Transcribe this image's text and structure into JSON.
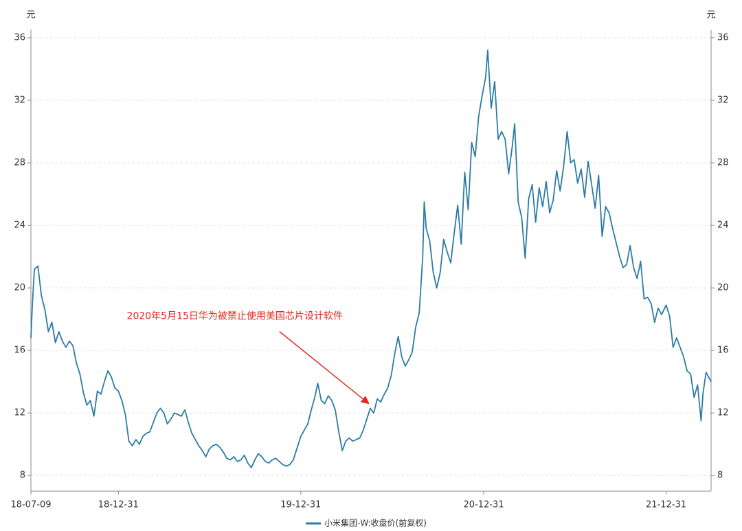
{
  "chart_data": {
    "type": "line",
    "ylabel": "元",
    "y2label": "元",
    "xlim": [
      "2018-07-09",
      "2022-03-31"
    ],
    "xticks": [
      {
        "value": "2018-07-09",
        "label": "18-07-09"
      },
      {
        "value": "2018-12-31",
        "label": "18-12-31"
      },
      {
        "value": "2019-12-31",
        "label": "19-12-31"
      },
      {
        "value": "2020-12-31",
        "label": "20-12-31"
      },
      {
        "value": "2021-12-31",
        "label": "21-12-31"
      }
    ],
    "ylim": [
      7,
      36.5
    ],
    "yticks": [
      8,
      12,
      16,
      20,
      24,
      28,
      32,
      36
    ],
    "y2lim": [
      7,
      36.5
    ],
    "y2ticks": [
      8,
      12,
      16,
      20,
      24,
      28,
      32,
      36
    ],
    "grid": true,
    "legend": "bottom",
    "annotation": {
      "text": "2020年5月15日华为被禁止使用美国芯片设计软件",
      "x": "2020-05-15",
      "y": 12.6,
      "color": "#e8251e"
    },
    "x": [
      "2018-07-09",
      "2018-07-12",
      "2018-07-16",
      "2018-07-23",
      "2018-07-30",
      "2018-08-06",
      "2018-08-13",
      "2018-08-20",
      "2018-08-27",
      "2018-09-03",
      "2018-09-10",
      "2018-09-17",
      "2018-09-24",
      "2018-10-01",
      "2018-10-08",
      "2018-10-15",
      "2018-10-22",
      "2018-10-29",
      "2018-11-05",
      "2018-11-12",
      "2018-11-19",
      "2018-11-26",
      "2018-12-03",
      "2018-12-10",
      "2018-12-17",
      "2018-12-24",
      "2018-12-31",
      "2019-01-07",
      "2019-01-14",
      "2019-01-21",
      "2019-01-28",
      "2019-02-04",
      "2019-02-11",
      "2019-02-18",
      "2019-02-25",
      "2019-03-04",
      "2019-03-11",
      "2019-03-18",
      "2019-03-25",
      "2019-04-01",
      "2019-04-08",
      "2019-04-15",
      "2019-04-22",
      "2019-04-29",
      "2019-05-06",
      "2019-05-13",
      "2019-05-20",
      "2019-05-27",
      "2019-06-03",
      "2019-06-10",
      "2019-06-17",
      "2019-06-24",
      "2019-07-01",
      "2019-07-08",
      "2019-07-15",
      "2019-07-22",
      "2019-07-29",
      "2019-08-05",
      "2019-08-12",
      "2019-08-19",
      "2019-08-26",
      "2019-09-02",
      "2019-09-09",
      "2019-09-16",
      "2019-09-23",
      "2019-09-30",
      "2019-10-07",
      "2019-10-14",
      "2019-10-21",
      "2019-10-28",
      "2019-11-04",
      "2019-11-11",
      "2019-11-18",
      "2019-11-25",
      "2019-12-02",
      "2019-12-09",
      "2019-12-16",
      "2019-12-23",
      "2019-12-31",
      "2020-01-07",
      "2020-01-14",
      "2020-01-21",
      "2020-01-28",
      "2020-02-03",
      "2020-02-10",
      "2020-02-17",
      "2020-02-24",
      "2020-03-02",
      "2020-03-09",
      "2020-03-16",
      "2020-03-23",
      "2020-03-30",
      "2020-04-06",
      "2020-04-13",
      "2020-04-20",
      "2020-04-27",
      "2020-05-04",
      "2020-05-11",
      "2020-05-18",
      "2020-05-25",
      "2020-06-01",
      "2020-06-08",
      "2020-06-15",
      "2020-06-22",
      "2020-06-29",
      "2020-07-06",
      "2020-07-13",
      "2020-07-20",
      "2020-07-27",
      "2020-08-03",
      "2020-08-10",
      "2020-08-17",
      "2020-08-24",
      "2020-08-31",
      "2020-09-03",
      "2020-09-07",
      "2020-09-14",
      "2020-09-21",
      "2020-09-28",
      "2020-10-05",
      "2020-10-12",
      "2020-10-19",
      "2020-10-26",
      "2020-11-02",
      "2020-11-09",
      "2020-11-16",
      "2020-11-23",
      "2020-11-30",
      "2020-12-07",
      "2020-12-14",
      "2020-12-21",
      "2020-12-28",
      "2021-01-04",
      "2021-01-08",
      "2021-01-15",
      "2021-01-22",
      "2021-01-29",
      "2021-02-05",
      "2021-02-12",
      "2021-02-19",
      "2021-02-26",
      "2021-03-03",
      "2021-03-10",
      "2021-03-17",
      "2021-03-24",
      "2021-03-31",
      "2021-04-07",
      "2021-04-14",
      "2021-04-21",
      "2021-04-28",
      "2021-05-05",
      "2021-05-12",
      "2021-05-19",
      "2021-05-26",
      "2021-06-02",
      "2021-06-09",
      "2021-06-16",
      "2021-06-23",
      "2021-06-30",
      "2021-07-07",
      "2021-07-14",
      "2021-07-21",
      "2021-07-28",
      "2021-08-04",
      "2021-08-11",
      "2021-08-18",
      "2021-08-25",
      "2021-09-01",
      "2021-09-08",
      "2021-09-15",
      "2021-09-22",
      "2021-09-29",
      "2021-10-06",
      "2021-10-13",
      "2021-10-20",
      "2021-10-27",
      "2021-11-03",
      "2021-11-10",
      "2021-11-17",
      "2021-11-24",
      "2021-12-01",
      "2021-12-08",
      "2021-12-15",
      "2021-12-22",
      "2021-12-31",
      "2022-01-07",
      "2022-01-14",
      "2022-01-21",
      "2022-01-28",
      "2022-02-04",
      "2022-02-11",
      "2022-02-18",
      "2022-02-25",
      "2022-03-04",
      "2022-03-11",
      "2022-03-15",
      "2022-03-21",
      "2022-03-31"
    ],
    "series": [
      {
        "name": "小米集团-W:收盘价(前复权)",
        "color": "#2c7ba4",
        "values": [
          16.8,
          19.0,
          21.2,
          21.4,
          19.5,
          18.6,
          17.2,
          17.8,
          16.5,
          17.2,
          16.6,
          16.2,
          16.6,
          16.3,
          15.2,
          14.5,
          13.3,
          12.5,
          12.8,
          11.8,
          13.4,
          13.2,
          14.0,
          14.7,
          14.3,
          13.6,
          13.4,
          12.8,
          11.9,
          10.2,
          9.9,
          10.3,
          10.0,
          10.5,
          10.7,
          10.8,
          11.4,
          12.0,
          12.3,
          12.0,
          11.3,
          11.6,
          12.0,
          11.9,
          11.8,
          12.2,
          11.4,
          10.7,
          10.3,
          9.9,
          9.6,
          9.2,
          9.7,
          9.9,
          10.0,
          9.8,
          9.5,
          9.1,
          9.0,
          9.2,
          8.9,
          9.0,
          9.3,
          8.8,
          8.5,
          9.0,
          9.4,
          9.2,
          8.9,
          8.8,
          9.0,
          9.1,
          8.9,
          8.7,
          8.6,
          8.7,
          9.0,
          9.7,
          10.5,
          10.9,
          11.3,
          12.2,
          13.0,
          13.9,
          12.8,
          12.6,
          13.1,
          12.8,
          12.2,
          10.8,
          9.6,
          10.2,
          10.4,
          10.2,
          10.3,
          10.4,
          10.9,
          11.6,
          12.3,
          12.0,
          12.9,
          12.7,
          13.2,
          13.6,
          14.4,
          15.8,
          16.9,
          15.6,
          15.0,
          15.4,
          15.9,
          17.5,
          18.4,
          22.0,
          25.5,
          23.8,
          23.0,
          21.0,
          20.0,
          21.0,
          23.1,
          22.3,
          21.6,
          23.5,
          25.3,
          22.8,
          27.4,
          25.0,
          29.3,
          28.4,
          31.0,
          32.3,
          33.5,
          35.2,
          31.5,
          33.2,
          29.5,
          30.0,
          29.5,
          27.3,
          29.0,
          30.5,
          25.5,
          24.5,
          21.9,
          25.7,
          26.6,
          24.2,
          26.4,
          25.2,
          26.8,
          24.8,
          25.6,
          27.5,
          26.2,
          27.8,
          30.0,
          28.0,
          28.2,
          26.7,
          27.6,
          25.8,
          28.1,
          26.6,
          25.1,
          27.2,
          23.3,
          25.2,
          24.8,
          23.8,
          22.9,
          22.0,
          21.3,
          21.5,
          22.7,
          21.3,
          20.6,
          21.7,
          19.3,
          19.4,
          19.0,
          17.8,
          18.7,
          18.3,
          18.9,
          18.2,
          16.2,
          16.8,
          16.2,
          15.6,
          14.7,
          14.5,
          13.0,
          13.8,
          11.5,
          13.3,
          14.6,
          14.0
        ]
      }
    ]
  }
}
